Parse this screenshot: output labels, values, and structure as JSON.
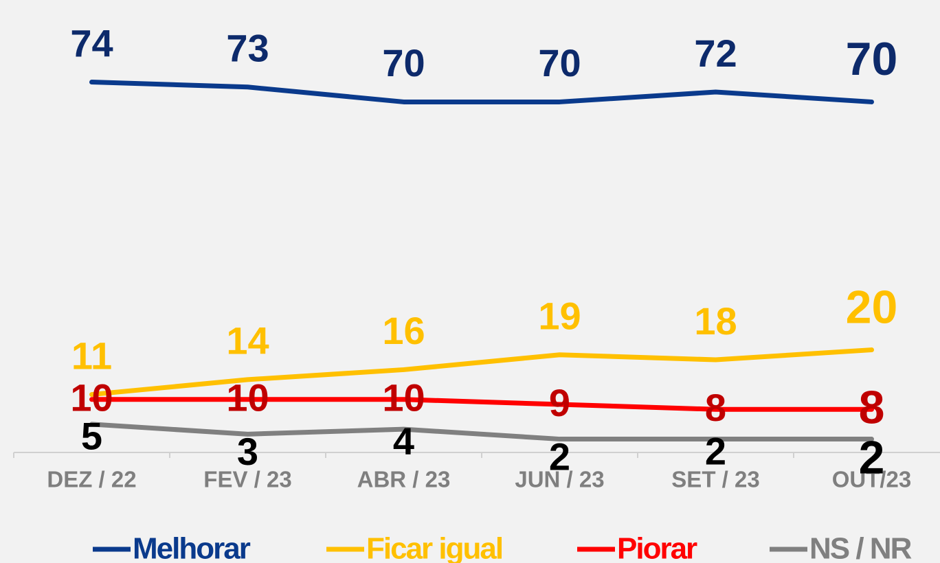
{
  "chart_data": {
    "type": "line",
    "categories": [
      "DEZ / 22",
      "FEV / 23",
      "ABR / 23",
      "JUN / 23",
      "SET / 23",
      "OUT/23"
    ],
    "series": [
      {
        "name": "Melhorar",
        "color": "#0a3a8c",
        "label_color": "#0d2a6b",
        "values": [
          74,
          73,
          70,
          70,
          72,
          70
        ]
      },
      {
        "name": "Ficar igual",
        "color": "#ffc000",
        "label_color": "#ffc000",
        "values": [
          11,
          14,
          16,
          19,
          18,
          20
        ]
      },
      {
        "name": "Piorar",
        "color": "#ff0000",
        "label_color": "#c00000",
        "values": [
          10,
          10,
          10,
          9,
          8,
          8
        ]
      },
      {
        "name": "NS / NR",
        "color": "#808080",
        "label_color": "#000000",
        "values": [
          5,
          3,
          4,
          2,
          2,
          2
        ]
      }
    ],
    "ylim": [
      0,
      90
    ],
    "legend": "bottom"
  }
}
